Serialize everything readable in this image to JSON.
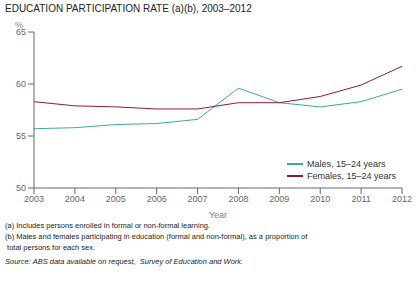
{
  "chart_data": {
    "type": "line",
    "title": "EDUCATION PARTICIPATION RATE (a)(b), 2003–2012",
    "xlabel": "Year",
    "ylabel": "%",
    "x": [
      2003,
      2004,
      2005,
      2006,
      2007,
      2008,
      2009,
      2010,
      2011,
      2012
    ],
    "series": [
      {
        "name": "Males, 15–24 years",
        "color": "#3aaba3",
        "values": [
          55.7,
          55.8,
          56.1,
          56.2,
          56.6,
          59.6,
          58.2,
          57.8,
          58.3,
          59.5
        ]
      },
      {
        "name": "Females, 15–24 years",
        "color": "#8b1a3a",
        "values": [
          58.3,
          57.9,
          57.8,
          57.6,
          57.6,
          58.2,
          58.2,
          58.8,
          59.9,
          61.7
        ]
      }
    ],
    "xlim": [
      2003,
      2012
    ],
    "xticks": [
      2003,
      2004,
      2005,
      2006,
      2007,
      2008,
      2009,
      2010,
      2011,
      2012
    ],
    "ylim": [
      50,
      65
    ],
    "yticks": [
      50,
      55,
      60,
      65
    ],
    "grid": false,
    "legend": "lower right",
    "annotations": [
      "(a) Includes persons enrolled in formal or non-formal learning.",
      "(b) Males and females participating in education (formal and non-formal), as a proportion of",
      " total persons for each sex.",
      "Source: ABS data available on request,  Survey of Education and Work."
    ]
  }
}
